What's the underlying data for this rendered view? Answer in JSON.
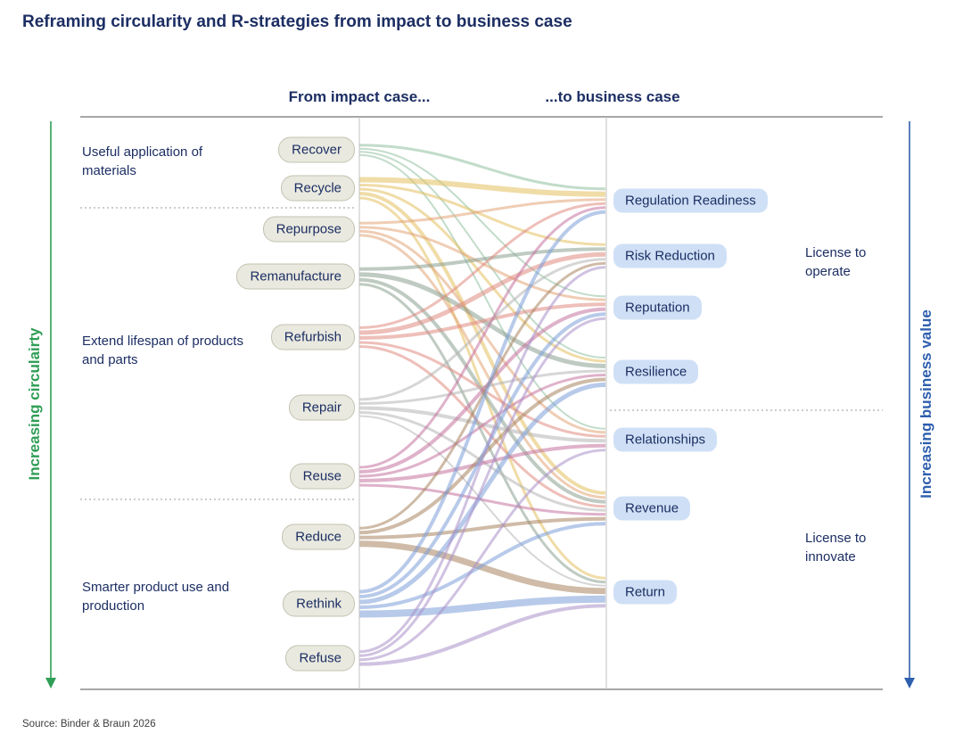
{
  "title": "Reframing circularity and R-strategies from impact to business case",
  "headers": {
    "impact": "From impact case...",
    "business": "...to business case"
  },
  "axes": {
    "left": {
      "label": "Increasing circulairty",
      "color": "#2f9e56"
    },
    "right": {
      "label": "Increasing business value",
      "color": "#2f5fae"
    }
  },
  "left_groups": [
    {
      "label": "Useful application of materials"
    },
    {
      "label": "Extend lifespan of products and parts"
    },
    {
      "label": "Smarter product use and production"
    }
  ],
  "right_groups": [
    {
      "label": "License to operate"
    },
    {
      "label": "License to innovate"
    }
  ],
  "strategies": [
    {
      "name": "Recover",
      "color": "#8fbf9f"
    },
    {
      "name": "Recycle",
      "color": "#e3bf5e"
    },
    {
      "name": "Repurpose",
      "color": "#e2a477"
    },
    {
      "name": "Remanufacture",
      "color": "#8aa08f"
    },
    {
      "name": "Refurbish",
      "color": "#e08a80"
    },
    {
      "name": "Repair",
      "color": "#b4b4b4"
    },
    {
      "name": "Reuse",
      "color": "#c4729f"
    },
    {
      "name": "Reduce",
      "color": "#a8845f"
    },
    {
      "name": "Rethink",
      "color": "#7e9fd8"
    },
    {
      "name": "Refuse",
      "color": "#a98fc9"
    }
  ],
  "outcomes": [
    "Regulation Readiness",
    "Risk Reduction",
    "Reputation",
    "Resilience",
    "Relationships",
    "Revenue",
    "Return"
  ],
  "links": [
    {
      "s": "Recover",
      "t": "Regulation Readiness",
      "w": 3
    },
    {
      "s": "Recover",
      "t": "Reputation",
      "w": 2
    },
    {
      "s": "Recover",
      "t": "Resilience",
      "w": 2
    },
    {
      "s": "Recover",
      "t": "Relationships",
      "w": 2
    },
    {
      "s": "Recycle",
      "t": "Regulation Readiness",
      "w": 6
    },
    {
      "s": "Recycle",
      "t": "Risk Reduction",
      "w": 3
    },
    {
      "s": "Recycle",
      "t": "Resilience",
      "w": 3
    },
    {
      "s": "Recycle",
      "t": "Revenue",
      "w": 4
    },
    {
      "s": "Recycle",
      "t": "Return",
      "w": 3
    },
    {
      "s": "Repurpose",
      "t": "Regulation Readiness",
      "w": 3
    },
    {
      "s": "Repurpose",
      "t": "Reputation",
      "w": 3
    },
    {
      "s": "Repurpose",
      "t": "Relationships",
      "w": 3
    },
    {
      "s": "Repurpose",
      "t": "Revenue",
      "w": 3
    },
    {
      "s": "Remanufacture",
      "t": "Risk Reduction",
      "w": 4
    },
    {
      "s": "Remanufacture",
      "t": "Resilience",
      "w": 5
    },
    {
      "s": "Remanufacture",
      "t": "Revenue",
      "w": 4
    },
    {
      "s": "Remanufacture",
      "t": "Return",
      "w": 3
    },
    {
      "s": "Refurbish",
      "t": "Regulation Readiness",
      "w": 3
    },
    {
      "s": "Refurbish",
      "t": "Risk Reduction",
      "w": 5
    },
    {
      "s": "Refurbish",
      "t": "Reputation",
      "w": 4
    },
    {
      "s": "Refurbish",
      "t": "Relationships",
      "w": 3
    },
    {
      "s": "Refurbish",
      "t": "Revenue",
      "w": 3
    },
    {
      "s": "Repair",
      "t": "Risk Reduction",
      "w": 3
    },
    {
      "s": "Repair",
      "t": "Resilience",
      "w": 3
    },
    {
      "s": "Repair",
      "t": "Relationships",
      "w": 4
    },
    {
      "s": "Repair",
      "t": "Revenue",
      "w": 3
    },
    {
      "s": "Repair",
      "t": "Return",
      "w": 2
    },
    {
      "s": "Reuse",
      "t": "Regulation Readiness",
      "w": 3
    },
    {
      "s": "Reuse",
      "t": "Reputation",
      "w": 4
    },
    {
      "s": "Reuse",
      "t": "Resilience",
      "w": 3
    },
    {
      "s": "Reuse",
      "t": "Relationships",
      "w": 4
    },
    {
      "s": "Reuse",
      "t": "Revenue",
      "w": 3
    },
    {
      "s": "Reduce",
      "t": "Risk Reduction",
      "w": 3
    },
    {
      "s": "Reduce",
      "t": "Resilience",
      "w": 4
    },
    {
      "s": "Reduce",
      "t": "Revenue",
      "w": 4
    },
    {
      "s": "Reduce",
      "t": "Return",
      "w": 7
    },
    {
      "s": "Rethink",
      "t": "Regulation Readiness",
      "w": 4
    },
    {
      "s": "Rethink",
      "t": "Reputation",
      "w": 4
    },
    {
      "s": "Rethink",
      "t": "Resilience",
      "w": 5
    },
    {
      "s": "Rethink",
      "t": "Revenue",
      "w": 4
    },
    {
      "s": "Rethink",
      "t": "Return",
      "w": 8
    },
    {
      "s": "Refuse",
      "t": "Risk Reduction",
      "w": 3
    },
    {
      "s": "Refuse",
      "t": "Reputation",
      "w": 3
    },
    {
      "s": "Refuse",
      "t": "Relationships",
      "w": 3
    },
    {
      "s": "Refuse",
      "t": "Return",
      "w": 4
    }
  ],
  "source": "Source: Binder & Braun 2026"
}
